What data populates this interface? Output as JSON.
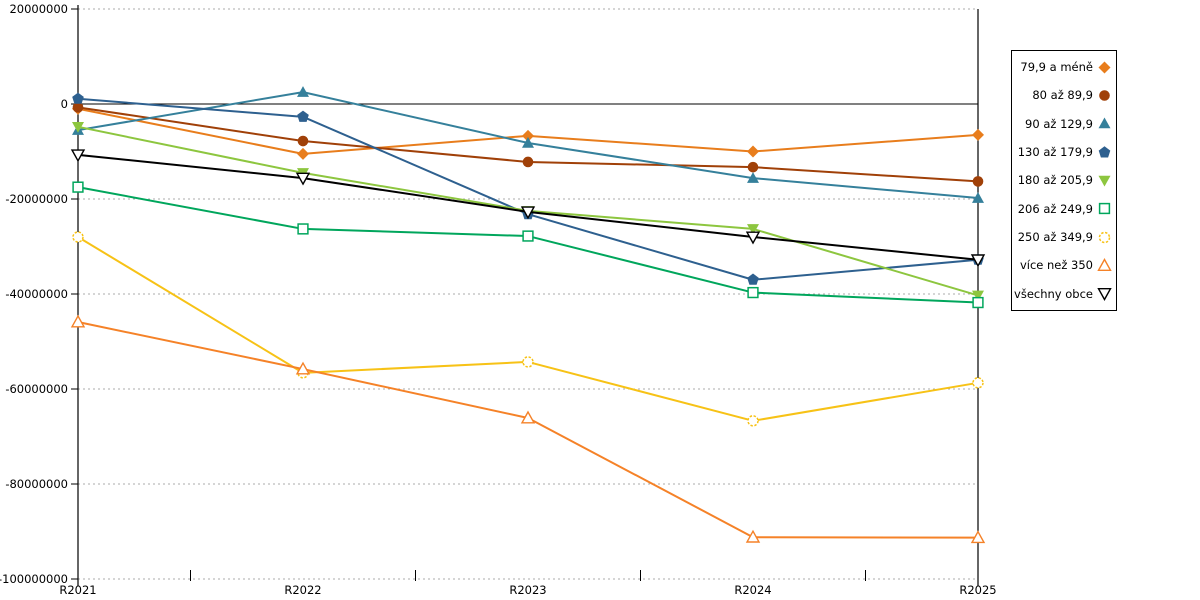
{
  "chart_data": {
    "type": "line",
    "title": "",
    "xlabel": "",
    "ylabel": "",
    "categories": [
      "R2021",
      "R2022",
      "R2023",
      "R2024",
      "R2025"
    ],
    "ylim": [
      -100000000,
      20000000
    ],
    "ytick_step": 20000000,
    "ytick_labels": [
      "20000000",
      "0",
      "-20000000",
      "-40000000",
      "-60000000",
      "-80000000",
      "-100000000"
    ],
    "grid": "horizontal-dashed",
    "zero_line": true,
    "legend_position": "right",
    "series": [
      {
        "name": "79,9 a méně",
        "marker": "diamond-filled",
        "color": "#E87D1C",
        "values": [
          -1000000,
          -10500000,
          -6700000,
          -10000000,
          -6500000
        ]
      },
      {
        "name": "80 až 89,9",
        "marker": "circle-filled",
        "color": "#A04008",
        "values": [
          -700000,
          -7800000,
          -12200000,
          -13300000,
          -16300000
        ]
      },
      {
        "name": "90 až 129,9",
        "marker": "triangle-up-filled",
        "color": "#35809B",
        "values": [
          -5500000,
          2500000,
          -8200000,
          -15600000,
          -19800000
        ]
      },
      {
        "name": "130 až 179,9",
        "marker": "pentagon-filled",
        "color": "#2E608F",
        "values": [
          1100000,
          -2700000,
          -23200000,
          -37000000,
          -32800000
        ]
      },
      {
        "name": "180 až 205,9",
        "marker": "triangle-down-filled",
        "color": "#8DC63F",
        "values": [
          -4800000,
          -14500000,
          -22500000,
          -26300000,
          -40300000
        ]
      },
      {
        "name": "206 až 249,9",
        "marker": "square-hollow",
        "color": "#00A65C",
        "values": [
          -17500000,
          -26300000,
          -27800000,
          -39700000,
          -41800000
        ]
      },
      {
        "name": "250 až 349,9",
        "marker": "circle-hollow",
        "color": "#F7C216",
        "values": [
          -28000000,
          -56600000,
          -54300000,
          -66700000,
          -58700000
        ]
      },
      {
        "name": "více než 350",
        "marker": "triangle-up-hollow",
        "color": "#F58228",
        "values": [
          -45900000,
          -55800000,
          -66100000,
          -91200000,
          -91300000
        ]
      },
      {
        "name": "všechny obce",
        "marker": "triangle-down-hollow",
        "color": "#000000",
        "values": [
          -10700000,
          -15600000,
          -22700000,
          -28000000,
          -32800000
        ]
      }
    ]
  }
}
